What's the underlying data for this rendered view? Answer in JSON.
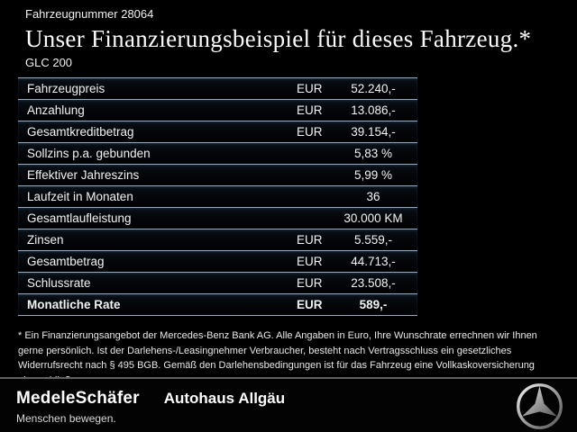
{
  "header": {
    "vehicle_number": "Fahrzeugnummer 28064",
    "title": "Unser Finanzierungsbeispiel für dieses Fahrzeug.*",
    "model": "GLC 200"
  },
  "table": {
    "rows": [
      {
        "label": "Fahrzeugpreis",
        "currency": "EUR",
        "value": "52.240,-",
        "bold": false
      },
      {
        "label": "Anzahlung",
        "currency": "EUR",
        "value": "13.086,-",
        "bold": false
      },
      {
        "label": "Gesamtkreditbetrag",
        "currency": "EUR",
        "value": "39.154,-",
        "bold": false
      },
      {
        "label": "Sollzins p.a. gebunden",
        "currency": "",
        "value": "5,83 %",
        "bold": false
      },
      {
        "label": "Effektiver Jahreszins",
        "currency": "",
        "value": "5,99 %",
        "bold": false
      },
      {
        "label": "Laufzeit in Monaten",
        "currency": "",
        "value": "36",
        "bold": false
      },
      {
        "label": "Gesamtlaufleistung",
        "currency": "",
        "value": "30.000 KM",
        "bold": false
      },
      {
        "label": "Zinsen",
        "currency": "EUR",
        "value": "5.559,-",
        "bold": false
      },
      {
        "label": "Gesamtbetrag",
        "currency": "EUR",
        "value": "44.713,-",
        "bold": false
      },
      {
        "label": "Schlussrate",
        "currency": "EUR",
        "value": "23.508,-",
        "bold": false
      },
      {
        "label": "Monatliche Rate",
        "currency": "EUR",
        "value": "589,-",
        "bold": true
      }
    ]
  },
  "footnote": {
    "text": "* Ein Finanzierungsangebot der Mercedes-Benz Bank AG. Alle Angaben in Euro, Ihre Wunschrate errechnen wir Ihnen gerne persönlich. Ist der Darlehens-/Leasingnehmer Verbraucher, besteht nach Vertragsschluss ein gesetzliches Widerrufsrecht nach § 495 BGB. Gemäß den Darlehensbedingungen ist für das Fahrzeug eine Vollkaskoversicherung abzuschließen."
  },
  "footer": {
    "dealer_logo": "MedeleSchäfer",
    "dealer_name": "Autohaus Allgäu",
    "tagline": "Menschen bewegen.",
    "brand_icon": "mercedes-star-icon"
  },
  "colors": {
    "background": "#000000",
    "table_separator": "#92a9be",
    "footer_separator": "#5f5f5f",
    "text": "#f2f2f2"
  }
}
